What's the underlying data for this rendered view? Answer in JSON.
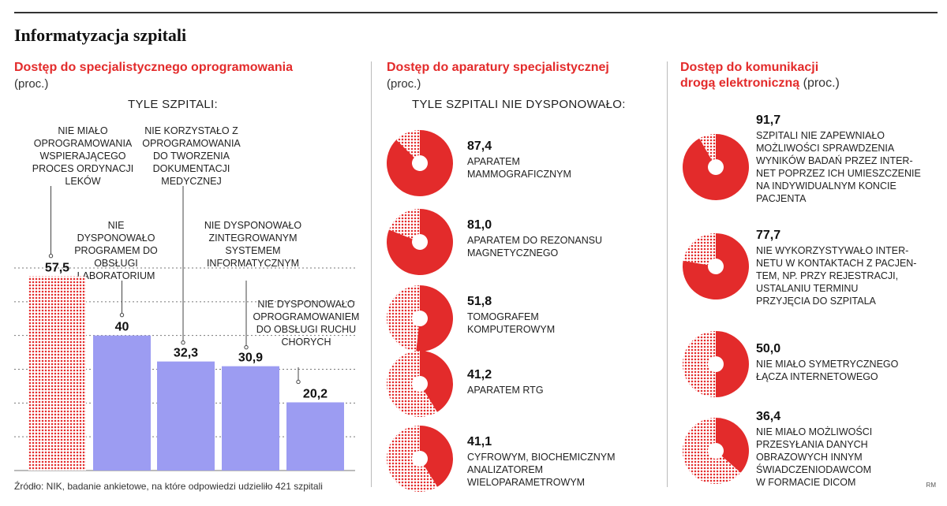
{
  "title": "Informatyzacja szpitali",
  "source": "Źródło: NIK, badanie ankietowe, na które odpowiedzi udzieliło 421 szpitali",
  "credit": "RM",
  "colors": {
    "accent": "#e32b2b",
    "bar": "#9c9cf2",
    "dots": "#e32b2b"
  },
  "panel1": {
    "title": "Dostęp do specjalistycznego oprogramowania",
    "unit": "(proc.)",
    "header": "TYLE SZPITALI:"
  },
  "panel2": {
    "title": "Dostęp do aparatury specjalistycznej",
    "unit": "(proc.)",
    "header": "TYLE SZPITALI NIE DYSPONOWAŁO:"
  },
  "panel3": {
    "title_line1": "Dostęp do komunikacji",
    "title_line2": "drogą elektroniczną",
    "unit": "(proc.)"
  },
  "chart_data": [
    {
      "type": "bar",
      "categories": [
        "NIE MIAŁO OPROGRAMOWANIA WSPIERAJĄCEGO PROCES ORDYNACJI LEKÓW",
        "NIE DYSPONOWAŁO PROGRAMEM DO OBSŁUGI LABORATORIUM",
        "NIE KORZYSTAŁO Z OPROGRAMOWANIA DO TWORZENIA DOKUMENTACJI MEDYCZNEJ",
        "NIE DYSPONOWAŁO ZINTEGROWANYM SYSTEMEM INFORMATYCZNYM",
        "NIE DYSPONOWAŁO OPROGRAMOWANIEM DO OBSŁUGI RUCHU CHORYCH"
      ],
      "values": [
        57.5,
        40,
        32.3,
        30.9,
        20.2
      ],
      "value_labels": [
        "57,5",
        "40",
        "32,3",
        "30,9",
        "20,2"
      ],
      "ylim": [
        0,
        60
      ],
      "grid": true
    },
    {
      "type": "pie",
      "items": [
        {
          "value": 87.4,
          "label_text": "87,4",
          "lines": [
            "APARATEM",
            "MAMMOGRAFICZNYM"
          ]
        },
        {
          "value": 81.0,
          "label_text": "81,0",
          "lines": [
            "APARATEM DO REZONANSU",
            "MAGNETYCZNEGO"
          ]
        },
        {
          "value": 51.8,
          "label_text": "51,8",
          "lines": [
            "TOMOGRAFEM",
            "KOMPUTEROWYM"
          ]
        },
        {
          "value": 41.2,
          "label_text": "41,2",
          "lines": [
            "APARATEM RTG"
          ]
        },
        {
          "value": 41.1,
          "label_text": "41,1",
          "lines": [
            "CYFROWYM, BIOCHEMICZNYM",
            "ANALIZATOREM",
            "WIELOPARAMETROWYM"
          ]
        }
      ]
    },
    {
      "type": "pie",
      "items": [
        {
          "value": 91.7,
          "label_text": "91,7",
          "lines": [
            "SZPITALI NIE ZAPEWNIAŁO",
            "MOŻLIWOŚCI SPRAWDZENIA",
            "WYNIKÓW BADAŃ PRZEZ INTER-",
            "NET POPRZEZ ICH UMIESZCZENIE",
            "NA INDYWIDUALNYM KONCIE",
            "PACJENTA"
          ]
        },
        {
          "value": 77.7,
          "label_text": "77,7",
          "lines": [
            "NIE WYKORZYSTYWAŁO INTER-",
            "NETU W KONTAKTACH Z PACJEN-",
            "TEM, NP. PRZY REJESTRACJI,",
            "USTALANIU TERMINU",
            "PRZYJĘCIA DO SZPITALA"
          ]
        },
        {
          "value": 50.0,
          "label_text": "50,0",
          "lines": [
            "NIE MIAŁO SYMETRYCZNEGO",
            "ŁĄCZA INTERNETOWEGO"
          ]
        },
        {
          "value": 36.4,
          "label_text": "36,4",
          "lines": [
            "NIE MIAŁO MOŻLIWOŚCI",
            "PRZESYŁANIA DANYCH",
            "OBRAZOWYCH INNYM",
            "ŚWIADCZENIODAWCOM",
            "W FORMACIE DICOM"
          ]
        }
      ]
    }
  ]
}
